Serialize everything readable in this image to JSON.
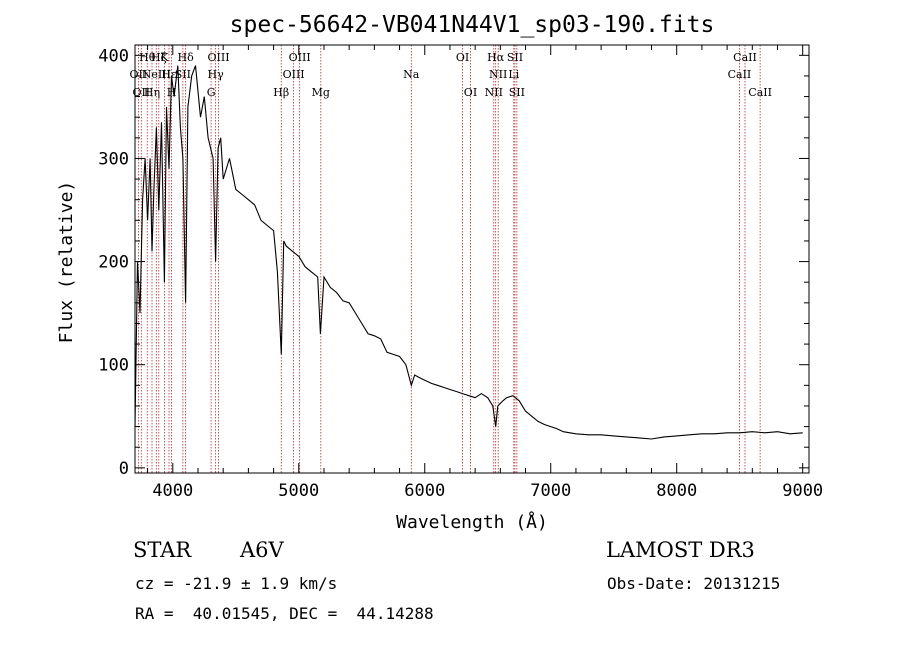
{
  "chart_data": {
    "type": "line",
    "title": "spec-56642-VB041N44V1_sp03-190.fits",
    "xlabel": "Wavelength (Å)",
    "ylabel": "Flux (relative)",
    "xlim": [
      3700,
      9050
    ],
    "ylim": [
      -5,
      410
    ],
    "xticks": [
      4000,
      5000,
      6000,
      7000,
      8000,
      9000
    ],
    "xtick_labels": [
      "4000",
      "5000",
      "6000",
      "7000",
      "8000",
      "9000"
    ],
    "yticks": [
      0,
      100,
      200,
      300,
      400
    ],
    "ytick_labels": [
      "0",
      "100",
      "200",
      "300",
      "400"
    ],
    "series": [
      {
        "name": "flux",
        "x": [
          3700,
          3720,
          3740,
          3760,
          3780,
          3800,
          3820,
          3835,
          3850,
          3870,
          3889,
          3910,
          3933,
          3950,
          3970,
          3990,
          4010,
          4040,
          4060,
          4080,
          4102,
          4120,
          4150,
          4180,
          4220,
          4250,
          4280,
          4320,
          4340,
          4360,
          4380,
          4400,
          4450,
          4500,
          4550,
          4600,
          4650,
          4700,
          4750,
          4800,
          4830,
          4861,
          4880,
          4900,
          4950,
          5000,
          5050,
          5100,
          5150,
          5172,
          5200,
          5250,
          5300,
          5350,
          5400,
          5450,
          5500,
          5550,
          5600,
          5650,
          5700,
          5750,
          5800,
          5850,
          5893,
          5920,
          5950,
          6000,
          6050,
          6100,
          6150,
          6200,
          6250,
          6300,
          6350,
          6400,
          6450,
          6500,
          6540,
          6563,
          6580,
          6620,
          6650,
          6700,
          6750,
          6800,
          6850,
          6900,
          6950,
          7000,
          7050,
          7100,
          7200,
          7300,
          7400,
          7500,
          7600,
          7700,
          7800,
          7900,
          8000,
          8100,
          8200,
          8300,
          8400,
          8500,
          8600,
          8700,
          8800,
          8900,
          9000
        ],
        "y": [
          40,
          200,
          150,
          260,
          300,
          240,
          300,
          210,
          270,
          330,
          250,
          335,
          180,
          350,
          290,
          380,
          360,
          390,
          330,
          300,
          160,
          350,
          380,
          390,
          340,
          360,
          320,
          300,
          200,
          310,
          320,
          280,
          300,
          270,
          265,
          260,
          255,
          240,
          235,
          230,
          190,
          110,
          220,
          215,
          210,
          205,
          195,
          190,
          185,
          130,
          185,
          175,
          170,
          162,
          160,
          150,
          140,
          130,
          128,
          125,
          112,
          110,
          108,
          100,
          80,
          90,
          88,
          85,
          82,
          80,
          78,
          76,
          74,
          72,
          70,
          68,
          72,
          68,
          60,
          40,
          60,
          65,
          68,
          70,
          65,
          55,
          50,
          45,
          42,
          40,
          38,
          35,
          33,
          32,
          32,
          31,
          30,
          29,
          28,
          30,
          31,
          32,
          33,
          33,
          34,
          34,
          35,
          34,
          35,
          33,
          34
        ]
      }
    ],
    "lines": [
      {
        "wave": 3727,
        "label": "OII",
        "tier": 2
      },
      {
        "wave": 3750,
        "label": "OII",
        "tier": 3
      },
      {
        "wave": 3797,
        "label": "Hθ",
        "tier": 1
      },
      {
        "wave": 3835,
        "label": "Hη",
        "tier": 3
      },
      {
        "wave": 3869,
        "label": "NeIII",
        "tier": 2
      },
      {
        "wave": 3889,
        "label": "Hζ",
        "tier": 1
      },
      {
        "wave": 3934,
        "label": "K",
        "tier": 1
      },
      {
        "wave": 3970,
        "label": "Hε",
        "tier": 2
      },
      {
        "wave": 3990,
        "label": "H",
        "tier": 3
      },
      {
        "wave": 4102,
        "label": "Hδ",
        "tier": 1
      },
      {
        "wave": 4080,
        "label": "SII",
        "tier": 2
      },
      {
        "wave": 4304,
        "label": "G",
        "tier": 3
      },
      {
        "wave": 4340,
        "label": "Hγ",
        "tier": 2
      },
      {
        "wave": 4363,
        "label": "OIII",
        "tier": 1
      },
      {
        "wave": 4861,
        "label": "Hβ",
        "tier": 3
      },
      {
        "wave": 4959,
        "label": "OIII",
        "tier": 2
      },
      {
        "wave": 5007,
        "label": "OIII",
        "tier": 1
      },
      {
        "wave": 5175,
        "label": "Mg",
        "tier": 3
      },
      {
        "wave": 5893,
        "label": "Na",
        "tier": 2
      },
      {
        "wave": 6300,
        "label": "OI",
        "tier": 1
      },
      {
        "wave": 6363,
        "label": "OI",
        "tier": 3
      },
      {
        "wave": 6548,
        "label": "NII",
        "tier": 3
      },
      {
        "wave": 6563,
        "label": "Hα",
        "tier": 1
      },
      {
        "wave": 6583,
        "label": "NII",
        "tier": 2
      },
      {
        "wave": 6707,
        "label": "Li",
        "tier": 2
      },
      {
        "wave": 6716,
        "label": "SII",
        "tier": 1
      },
      {
        "wave": 6731,
        "label": "SII",
        "tier": 3
      },
      {
        "wave": 8498,
        "label": "CaII",
        "tier": 2
      },
      {
        "wave": 8542,
        "label": "CaII",
        "tier": 1
      },
      {
        "wave": 8662,
        "label": "CaII",
        "tier": 3
      }
    ]
  },
  "info": {
    "object_class": "STAR",
    "subclass": "A6V",
    "survey": "LAMOST DR3",
    "redshift": "cz = -21.9 ± 1.9 km/s",
    "obs_date": "Obs-Date: 20131215",
    "coords": "RA =  40.01545, DEC =  44.14288"
  },
  "colors": {
    "line_marker": "#b03030",
    "spectrum": "#000000",
    "axes": "#000000"
  }
}
